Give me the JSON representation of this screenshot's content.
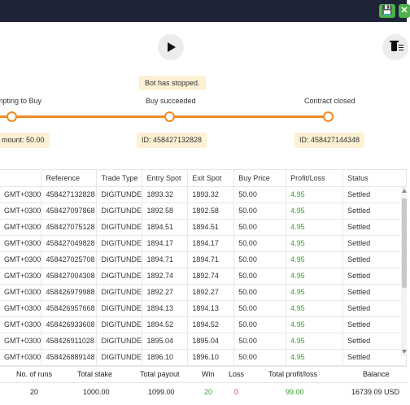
{
  "toolbar": {
    "save_icon": "save-icon",
    "close_icon": "close-icon",
    "save_glyph": "💾",
    "close_glyph": "✕"
  },
  "controls": {
    "play_icon": "play-icon",
    "clear_icon": "clear-stats-icon"
  },
  "status_message": "Bot has stopped.",
  "stages": [
    {
      "label": "mpting to Buy",
      "chip": "mount: 50.00"
    },
    {
      "label": "Buy succeeded",
      "chip": "ID: 458427132828"
    },
    {
      "label": "Contract closed",
      "chip": "ID: 458427144348"
    }
  ],
  "colors": {
    "accent_orange": "#f08a24",
    "profit_green": "#36a12d",
    "loss_red": "#e53935",
    "topbar": "#1e2338",
    "chip_bg": "#fdf1d3"
  },
  "transactions": {
    "columns": [
      "",
      "Reference",
      "Trade Type",
      "Entry Spot",
      "Exit Spot",
      "Buy Price",
      "Profit/Loss",
      "Status"
    ],
    "rows": [
      [
        "GMT+0300",
        "458427132828",
        "DIGITUNDE",
        "1893.32",
        "1893.32",
        "50.00",
        "4.95",
        "Settled"
      ],
      [
        "GMT+0300",
        "458427097868",
        "DIGITUNDE",
        "1892.58",
        "1892.58",
        "50.00",
        "4.95",
        "Settled"
      ],
      [
        "GMT+0300",
        "458427075128",
        "DIGITUNDE",
        "1894.51",
        "1894.51",
        "50.00",
        "4.95",
        "Settled"
      ],
      [
        "GMT+0300",
        "458427049828",
        "DIGITUNDE",
        "1894.17",
        "1894.17",
        "50.00",
        "4.95",
        "Settled"
      ],
      [
        "GMT+0300",
        "458427025708",
        "DIGITUNDE",
        "1894.71",
        "1894.71",
        "50.00",
        "4.95",
        "Settled"
      ],
      [
        "GMT+0300",
        "458427004308",
        "DIGITUNDE",
        "1892.74",
        "1892.74",
        "50.00",
        "4.95",
        "Settled"
      ],
      [
        "GMT+0300",
        "458426979988",
        "DIGITUNDE",
        "1892.27",
        "1892.27",
        "50.00",
        "4.95",
        "Settled"
      ],
      [
        "GMT+0300",
        "458426957668",
        "DIGITUNDE",
        "1894.13",
        "1894.13",
        "50.00",
        "4.95",
        "Settled"
      ],
      [
        "GMT+0300",
        "458426933608",
        "DIGITUNDE",
        "1894.52",
        "1894.52",
        "50.00",
        "4.95",
        "Settled"
      ],
      [
        "GMT+0300",
        "458426911028",
        "DIGITUNDE",
        "1895.04",
        "1895.04",
        "50.00",
        "4.95",
        "Settled"
      ],
      [
        "GMT+0300",
        "458426889148",
        "DIGITUNDE",
        "1896.10",
        "1896.10",
        "50.00",
        "4.95",
        "Settled"
      ]
    ]
  },
  "summary": {
    "labels": [
      "No. of runs",
      "Total stake",
      "Total payout",
      "Win",
      "Loss",
      "Total profit/loss",
      "Balance"
    ],
    "values": [
      "20",
      "1000.00",
      "1099.00",
      "20",
      "0",
      "99.00",
      "16739.09 USD"
    ]
  }
}
